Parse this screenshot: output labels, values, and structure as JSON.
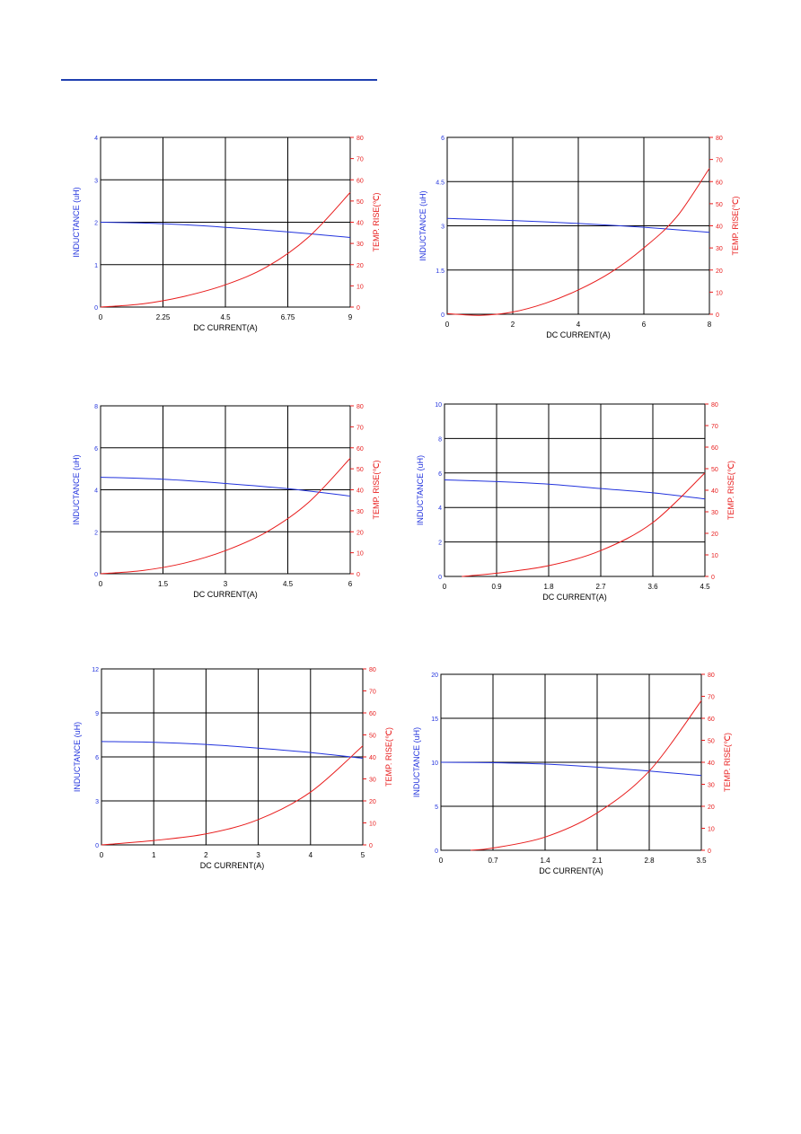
{
  "header": {
    "rule_color": "#1f3fb0"
  },
  "colors": {
    "inductance": "#2233dd",
    "temp_rise": "#e81c1c",
    "grid": "#000000",
    "axis_text": "#000000"
  },
  "chart_data": [
    {
      "type": "line",
      "xlabel": "DC CURRENT(A)",
      "ylabel": "INDUCTANCE (uH)",
      "y2label": "TEMP. RISE(℃)",
      "xlim": [
        0,
        9
      ],
      "xticks": [
        "0",
        "2.25",
        "4.5",
        "6.75",
        "9"
      ],
      "ylim": [
        0,
        4
      ],
      "yticks": [
        "0",
        "1",
        "2",
        "3",
        "4"
      ],
      "y2lim": [
        0,
        80
      ],
      "y2ticks": [
        "0",
        "10",
        "20",
        "30",
        "40",
        "50",
        "60",
        "70",
        "80"
      ],
      "grid": true,
      "series": [
        {
          "axis": "left",
          "x": [
            0,
            1.5,
            3,
            4.5,
            6,
            7.5,
            9
          ],
          "values": [
            2.0,
            1.98,
            1.94,
            1.88,
            1.81,
            1.73,
            1.64
          ]
        },
        {
          "axis": "right",
          "x": [
            0,
            1.5,
            3,
            4.5,
            6,
            7.5,
            9
          ],
          "values": [
            0,
            1.5,
            5,
            10.5,
            19,
            33,
            54
          ]
        }
      ]
    },
    {
      "type": "line",
      "xlabel": "DC CURRENT(A)",
      "ylabel": "INDUCTANCE (uH)",
      "y2label": "TEMP. RISE(℃)",
      "xlim": [
        0,
        8
      ],
      "xticks": [
        "0",
        "2",
        "4",
        "6",
        "8"
      ],
      "ylim": [
        0,
        6
      ],
      "yticks": [
        "0",
        "1.5",
        "3",
        "4.5",
        "6"
      ],
      "y2lim": [
        0,
        80
      ],
      "y2ticks": [
        "0",
        "10",
        "20",
        "30",
        "40",
        "50",
        "60",
        "70",
        "80"
      ],
      "grid": true,
      "series": [
        {
          "axis": "left",
          "x": [
            0,
            2,
            4,
            6,
            8
          ],
          "values": [
            3.25,
            3.18,
            3.08,
            2.95,
            2.78
          ]
        },
        {
          "axis": "right",
          "x": [
            0,
            1,
            2,
            3,
            4,
            5,
            6,
            7,
            8
          ],
          "values": [
            0.3,
            -0.5,
            1,
            5,
            11,
            19,
            30,
            44,
            66
          ]
        }
      ]
    },
    {
      "type": "line",
      "xlabel": "DC CURRENT(A)",
      "ylabel": "INDUCTANCE (uH)",
      "y2label": "TEMP. RISE(℃)",
      "xlim": [
        0,
        6
      ],
      "xticks": [
        "0",
        "1.5",
        "3",
        "4.5",
        "6"
      ],
      "ylim": [
        0,
        8
      ],
      "yticks": [
        "0",
        "2",
        "4",
        "6",
        "8"
      ],
      "y2lim": [
        0,
        80
      ],
      "y2ticks": [
        "0",
        "10",
        "20",
        "30",
        "40",
        "50",
        "60",
        "70",
        "80"
      ],
      "grid": true,
      "series": [
        {
          "axis": "left",
          "x": [
            0,
            1.5,
            3,
            4.5,
            6
          ],
          "values": [
            4.6,
            4.5,
            4.3,
            4.05,
            3.7
          ]
        },
        {
          "axis": "right",
          "x": [
            0,
            1,
            2,
            3,
            4,
            5,
            6
          ],
          "values": [
            0,
            1.5,
            5,
            11,
            20,
            34,
            55
          ]
        }
      ]
    },
    {
      "type": "line",
      "xlabel": "DC CURRENT(A)",
      "ylabel": "INDUCTANCE (uH)",
      "y2label": "TEMP. RISE(℃)",
      "xlim": [
        0,
        4.5
      ],
      "xticks": [
        "0",
        "0.9",
        "1.8",
        "2.7",
        "3.6",
        "4.5"
      ],
      "ylim": [
        0,
        10
      ],
      "yticks": [
        "0",
        "2",
        "4",
        "6",
        "8",
        "10"
      ],
      "y2lim": [
        0,
        80
      ],
      "y2ticks": [
        "0",
        "10",
        "20",
        "30",
        "40",
        "50",
        "60",
        "70",
        "80"
      ],
      "grid": true,
      "series": [
        {
          "axis": "left",
          "x": [
            0,
            0.9,
            1.8,
            2.7,
            3.6,
            4.5
          ],
          "values": [
            5.6,
            5.5,
            5.35,
            5.1,
            4.85,
            4.5
          ]
        },
        {
          "axis": "right",
          "x": [
            0.3,
            0.9,
            1.8,
            2.7,
            3.6,
            4.5
          ],
          "values": [
            0,
            1.5,
            5,
            12,
            25,
            48
          ]
        }
      ]
    },
    {
      "type": "line",
      "xlabel": "DC CURRENT(A)",
      "ylabel": "INDUCTANCE (uH)",
      "y2label": "TEMP. RISE(℃)",
      "xlim": [
        0,
        5
      ],
      "xticks": [
        "0",
        "1",
        "2",
        "3",
        "4",
        "5"
      ],
      "ylim": [
        0,
        12
      ],
      "yticks": [
        "0",
        "3",
        "6",
        "9",
        "12"
      ],
      "y2lim": [
        0,
        80
      ],
      "y2ticks": [
        "0",
        "10",
        "20",
        "30",
        "40",
        "50",
        "60",
        "70",
        "80"
      ],
      "grid": true,
      "series": [
        {
          "axis": "left",
          "x": [
            0,
            1,
            2,
            3,
            4,
            5
          ],
          "values": [
            7.05,
            7.0,
            6.85,
            6.6,
            6.3,
            5.9
          ]
        },
        {
          "axis": "right",
          "x": [
            0,
            1,
            2,
            3,
            4,
            5
          ],
          "values": [
            0,
            2,
            5,
            11.5,
            24,
            45
          ]
        }
      ]
    },
    {
      "type": "line",
      "xlabel": "DC CURRENT(A)",
      "ylabel": "INDUCTANCE (uH)",
      "y2label": "TEMP. RISE(℃)",
      "xlim": [
        0,
        3.5
      ],
      "xticks": [
        "0",
        "0.7",
        "1.4",
        "2.1",
        "2.8",
        "3.5"
      ],
      "ylim": [
        0,
        20
      ],
      "yticks": [
        "0",
        "5",
        "10",
        "15",
        "20"
      ],
      "y2lim": [
        0,
        80
      ],
      "y2ticks": [
        "0",
        "10",
        "20",
        "30",
        "40",
        "50",
        "60",
        "70",
        "80"
      ],
      "grid": true,
      "series": [
        {
          "axis": "left",
          "x": [
            0,
            0.7,
            1.4,
            2.1,
            2.8,
            3.5
          ],
          "values": [
            10.0,
            9.95,
            9.8,
            9.45,
            9.0,
            8.5
          ]
        },
        {
          "axis": "right",
          "x": [
            0.4,
            0.7,
            1.4,
            2.1,
            2.8,
            3.5
          ],
          "values": [
            0,
            1,
            6,
            17,
            36,
            68
          ]
        }
      ]
    }
  ]
}
